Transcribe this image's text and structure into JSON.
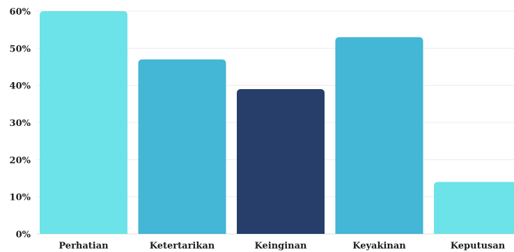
{
  "chart_data": {
    "type": "bar",
    "categories": [
      "Perhatian",
      "Ketertarikan",
      "Keinginan",
      "Keyakinan",
      "Keputusan"
    ],
    "values": [
      60,
      47,
      39,
      53,
      14
    ],
    "colors": [
      "#6ce3e8",
      "#44b6d6",
      "#273e6b",
      "#44b6d6",
      "#6ce3e8"
    ],
    "y_ticks": [
      "0%",
      "10%",
      "20%",
      "30%",
      "40%",
      "50%",
      "60%"
    ],
    "ylim": [
      0,
      60
    ],
    "grid": true,
    "title": "",
    "xlabel": "",
    "ylabel": ""
  }
}
